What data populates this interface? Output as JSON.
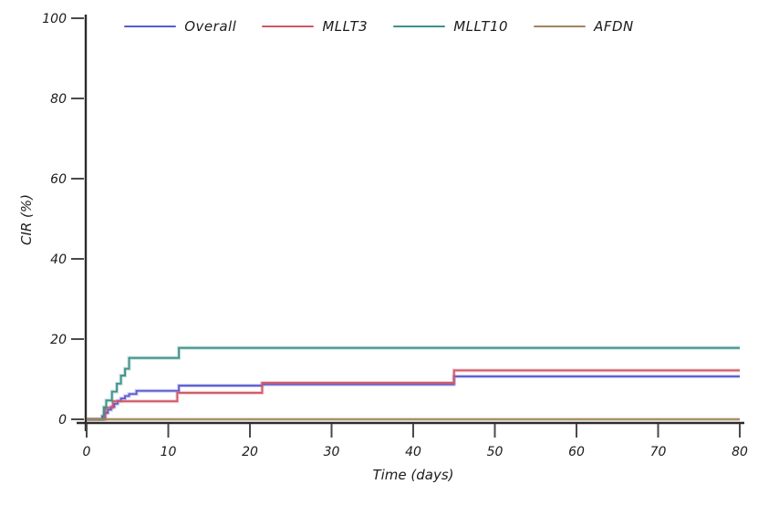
{
  "figure": {
    "background": "#ffffff",
    "axis_color": "#2b2b2b",
    "tick_color": "#4a4a4a",
    "text_color": "#1c1c1c"
  },
  "chart_data": {
    "type": "line",
    "subtype": "step-function-cumulative-incidence",
    "title": "",
    "xlabel": "Time (days)",
    "ylabel": "CIR (%)",
    "xlim": [
      0,
      80
    ],
    "ylim": [
      0,
      100
    ],
    "x_ticks": [
      0,
      10,
      20,
      30,
      40,
      50,
      60,
      70,
      80
    ],
    "y_ticks": [
      0,
      20,
      40,
      60,
      80,
      100
    ],
    "grid": false,
    "legend_position": "top-center",
    "series": [
      {
        "name": "Overall",
        "color": "#5a5ad2",
        "points": [
          [
            0,
            0
          ],
          [
            1.9,
            0.8
          ],
          [
            2.2,
            1.6
          ],
          [
            2.6,
            2.4
          ],
          [
            3.0,
            3.1
          ],
          [
            3.4,
            3.9
          ],
          [
            3.8,
            4.6
          ],
          [
            4.2,
            5.2
          ],
          [
            4.7,
            5.8
          ],
          [
            5.2,
            6.3
          ],
          [
            6.1,
            7.1
          ],
          [
            11.3,
            8.4
          ],
          [
            21.5,
            8.7
          ],
          [
            45,
            10.7
          ],
          [
            80,
            10.7
          ]
        ]
      },
      {
        "name": "MLLT3",
        "color": "#cf5868",
        "points": [
          [
            0,
            0
          ],
          [
            2.3,
            2.9
          ],
          [
            3.2,
            4.5
          ],
          [
            11.1,
            6.6
          ],
          [
            21.5,
            9.1
          ],
          [
            45,
            12.2
          ],
          [
            80,
            12.2
          ]
        ]
      },
      {
        "name": "MLLT10",
        "color": "#3d9188",
        "points": [
          [
            0,
            0
          ],
          [
            2.1,
            3.0
          ],
          [
            2.4,
            4.7
          ],
          [
            3.1,
            6.9
          ],
          [
            3.7,
            8.9
          ],
          [
            4.2,
            10.9
          ],
          [
            4.7,
            12.6
          ],
          [
            5.2,
            15.3
          ],
          [
            11.3,
            17.8
          ],
          [
            80,
            17.8
          ]
        ]
      },
      {
        "name": "AFDN",
        "color": "#a2845c",
        "points": [
          [
            0,
            0
          ],
          [
            80,
            0
          ]
        ]
      }
    ]
  }
}
